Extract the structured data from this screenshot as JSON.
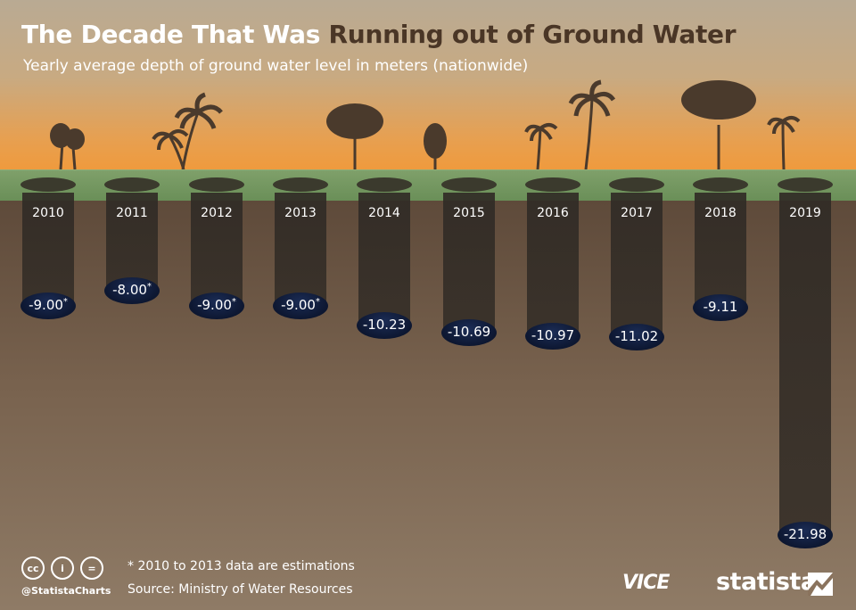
{
  "header": {
    "title_part1": "The Decade That Was",
    "title_part2": "Running out of Ground Water",
    "subtitle": "Yearly average depth of ground water level in meters (nationwide)"
  },
  "chart_data": {
    "type": "bar",
    "title": "The Decade That Was Running out of Ground Water",
    "subtitle": "Yearly average depth of ground water level in meters (nationwide)",
    "categories": [
      "2010",
      "2011",
      "2012",
      "2013",
      "2014",
      "2015",
      "2016",
      "2017",
      "2018",
      "2019"
    ],
    "values": [
      -9.0,
      -8.0,
      -9.0,
      -9.0,
      -10.23,
      -10.69,
      -10.97,
      -11.02,
      -9.11,
      -21.98
    ],
    "value_labels": [
      "-9.00",
      "-8.00",
      "-9.00",
      "-9.00",
      "-10.23",
      "-10.69",
      "-10.97",
      "-11.02",
      "-9.11",
      "-21.98"
    ],
    "estimated": [
      true,
      true,
      true,
      true,
      false,
      false,
      false,
      false,
      false,
      false
    ],
    "estimate_marker": "*",
    "ylim": [
      -22,
      0
    ],
    "grid": false,
    "legend": "none"
  },
  "colors": {
    "title_accent": "#4a3626",
    "water": "#0d1731",
    "grass": "#6a8f58",
    "sky_glow": "#f09a3c"
  },
  "footer": {
    "note": "* 2010 to 2013 data are estimations",
    "source": "Source: Ministry of Water Resources",
    "handle": "@StatistaCharts",
    "brand": "statista",
    "partner": "VICE",
    "license_icons": [
      "cc-icon",
      "attribution-icon",
      "no-derivatives-icon"
    ]
  }
}
